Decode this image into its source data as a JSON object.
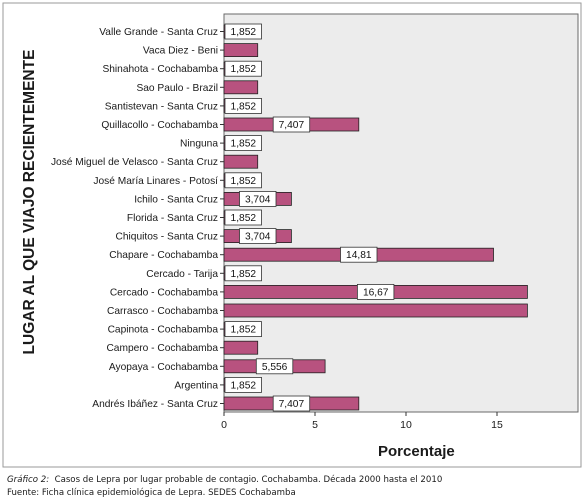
{
  "chart_data": {
    "type": "bar",
    "orientation": "horizontal",
    "ylabel": "LUGAR AL QUE VIAJO RECIENTEMENTE",
    "xlabel": "Porcentaje",
    "xlim": [
      0,
      19.5
    ],
    "xticks": [
      "0",
      "5",
      "10",
      "15"
    ],
    "grid": false,
    "legend": "none",
    "bar_color": "#b8527f",
    "plot_background": "#ececec",
    "categories": [
      "Valle Grande - Santa Cruz",
      "Vaca Diez - Beni",
      "Shinahota - Cochabamba",
      "Sao Paulo - Brazil",
      "Santistevan - Santa Cruz",
      "Quillacollo - Cochabamba",
      "Ninguna",
      "José Miguel de Velasco - Santa Cruz",
      "José María Linares - Potosí",
      "Ichilo - Santa Cruz",
      "Florida - Santa Cruz",
      "Chiquitos - Santa Cruz",
      "Chapare - Cochabamba",
      "Cercado - Tarija",
      "Cercado - Cochabamba",
      "Carrasco - Cochabamba",
      "Capinota - Cochabamba",
      "Campero - Cochabamba",
      "Ayopaya - Cochabamba",
      "Argentina",
      "Andrés Ibáñez - Santa Cruz"
    ],
    "values": [
      1.852,
      1.852,
      1.852,
      1.852,
      1.852,
      7.407,
      1.852,
      1.852,
      1.852,
      3.704,
      1.852,
      3.704,
      14.81,
      1.852,
      16.67,
      16.67,
      1.852,
      1.852,
      5.556,
      1.852,
      7.407
    ],
    "data_labels": [
      "1,852",
      "",
      "1,852",
      "",
      "1,852",
      "7,407",
      "1,852",
      "",
      "1,852",
      "3,704",
      "1,852",
      "3,704",
      "14,81",
      "1,852",
      "16,67",
      "",
      "1,852",
      "",
      "5,556",
      "1,852",
      "7,407"
    ]
  },
  "caption": {
    "figure_label": "Gráfico 2:",
    "figure_text": "Casos de Lepra por lugar probable de contagio. Cochabamba. Década 2000 hasta el 2010",
    "source": "Fuente: Ficha clínica epidemiológica de Lepra. SEDES Cochabamba"
  }
}
